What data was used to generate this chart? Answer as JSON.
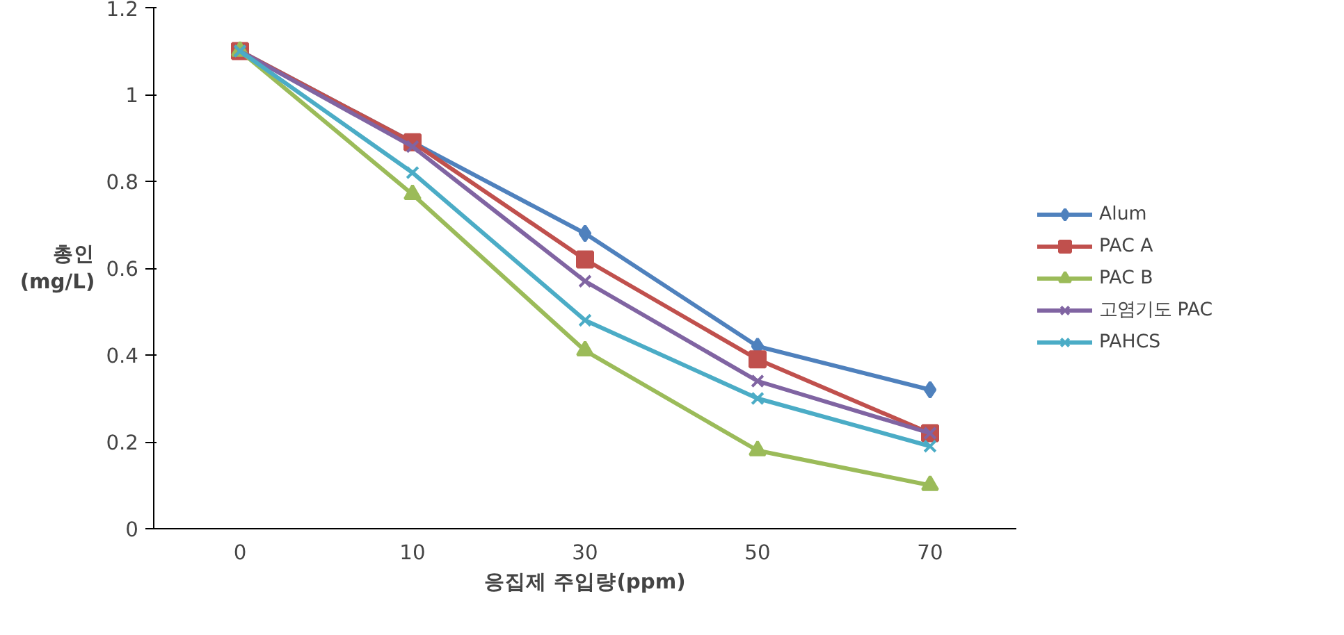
{
  "chart_data": {
    "type": "line",
    "xlabel": "응집제 주입량(ppm)",
    "ylabel": "총인\n(mg/L)",
    "categories": [
      "0",
      "10",
      "30",
      "50",
      "70"
    ],
    "series": [
      {
        "name": "Alum",
        "color": "#4f81bd",
        "marker": "diamond",
        "values": [
          1.1,
          0.89,
          0.68,
          0.42,
          0.32
        ]
      },
      {
        "name": "PAC A",
        "color": "#c0504d",
        "marker": "square",
        "values": [
          1.1,
          0.89,
          0.62,
          0.39,
          0.22
        ]
      },
      {
        "name": "PAC B",
        "color": "#9bbb59",
        "marker": "triangle",
        "values": [
          1.1,
          0.77,
          0.41,
          0.18,
          0.1
        ]
      },
      {
        "name": "고염기도 PAC",
        "color": "#8064a2",
        "marker": "cross",
        "values": [
          1.1,
          0.88,
          0.57,
          0.34,
          0.22
        ]
      },
      {
        "name": "PAHCS",
        "color": "#4bacc6",
        "marker": "cross",
        "values": [
          1.1,
          0.82,
          0.48,
          0.3,
          0.19
        ]
      }
    ],
    "ylim": [
      0,
      1.2
    ],
    "yticks": [
      0,
      0.2,
      0.4,
      0.6,
      0.8,
      1,
      1.2
    ],
    "grid": false,
    "legend": "right",
    "line_style": "solid"
  }
}
